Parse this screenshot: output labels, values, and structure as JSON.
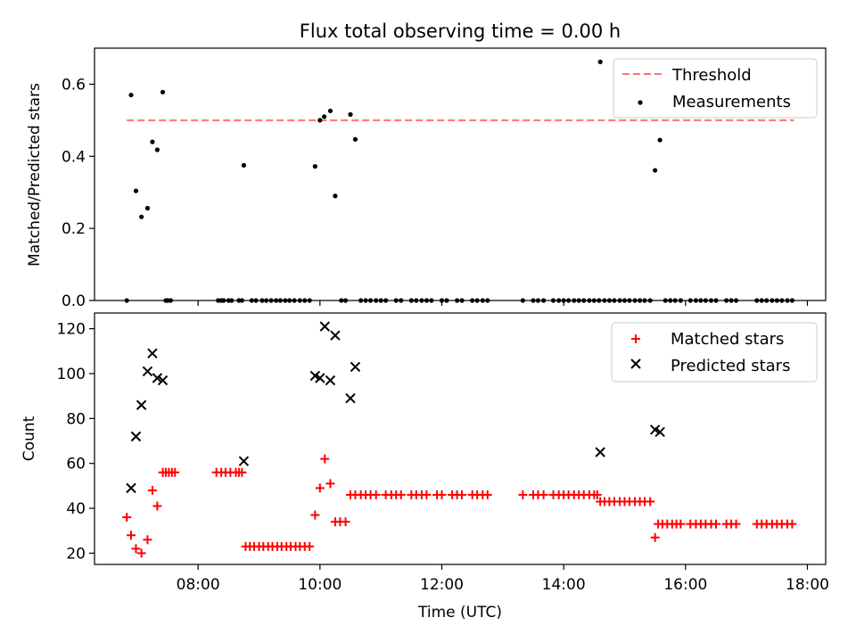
{
  "figure": {
    "title": "Flux total observing time = 0.00 h",
    "xlabel": "Time (UTC)"
  },
  "chart_data": [
    {
      "type": "scatter",
      "ylabel": "Matched/Predicted stars",
      "xlim": [
        6.3,
        18.3
      ],
      "ylim": [
        0,
        0.7
      ],
      "yticks": [
        0.0,
        0.2,
        0.4,
        0.6
      ],
      "ytick_labels": [
        "0.0",
        "0.2",
        "0.4",
        "0.6"
      ],
      "legend": {
        "position": "top-right"
      },
      "threshold": {
        "name": "Threshold",
        "y": 0.5,
        "x_range": [
          6.83,
          17.78
        ],
        "color": "#ff7373"
      },
      "series": [
        {
          "name": "Measurements",
          "color": "#000000",
          "points": [
            [
              6.83,
              0
            ],
            [
              6.9,
              0.57
            ],
            [
              6.98,
              0.304
            ],
            [
              7.07,
              0.232
            ],
            [
              7.17,
              0.256
            ],
            [
              7.25,
              0.44
            ],
            [
              7.33,
              0.418
            ],
            [
              7.42,
              0.578
            ],
            [
              7.47,
              0
            ],
            [
              7.5,
              0
            ],
            [
              7.55,
              0
            ],
            [
              8.33,
              0
            ],
            [
              8.38,
              0
            ],
            [
              8.42,
              0
            ],
            [
              8.5,
              0
            ],
            [
              8.55,
              0
            ],
            [
              8.67,
              0
            ],
            [
              8.72,
              0
            ],
            [
              8.75,
              0.375
            ],
            [
              8.88,
              0
            ],
            [
              8.95,
              0
            ],
            [
              9.05,
              0
            ],
            [
              9.12,
              0
            ],
            [
              9.2,
              0
            ],
            [
              9.28,
              0
            ],
            [
              9.35,
              0
            ],
            [
              9.43,
              0
            ],
            [
              9.5,
              0
            ],
            [
              9.58,
              0
            ],
            [
              9.67,
              0
            ],
            [
              9.75,
              0
            ],
            [
              9.83,
              0
            ],
            [
              9.92,
              0.372
            ],
            [
              10.0,
              0.5
            ],
            [
              10.07,
              0.51
            ],
            [
              10.17,
              0.526
            ],
            [
              10.25,
              0.29
            ],
            [
              10.35,
              0
            ],
            [
              10.42,
              0
            ],
            [
              10.5,
              0.516
            ],
            [
              10.58,
              0.447
            ],
            [
              10.67,
              0
            ],
            [
              10.75,
              0
            ],
            [
              10.83,
              0
            ],
            [
              10.92,
              0
            ],
            [
              11.0,
              0
            ],
            [
              11.08,
              0
            ],
            [
              11.25,
              0
            ],
            [
              11.33,
              0
            ],
            [
              11.5,
              0
            ],
            [
              11.58,
              0
            ],
            [
              11.67,
              0
            ],
            [
              11.75,
              0
            ],
            [
              11.83,
              0
            ],
            [
              12.0,
              0
            ],
            [
              12.08,
              0
            ],
            [
              12.25,
              0
            ],
            [
              12.33,
              0
            ],
            [
              12.5,
              0
            ],
            [
              12.58,
              0
            ],
            [
              12.67,
              0
            ],
            [
              12.75,
              0
            ],
            [
              13.33,
              0
            ],
            [
              13.5,
              0
            ],
            [
              13.58,
              0
            ],
            [
              13.67,
              0
            ],
            [
              13.83,
              0
            ],
            [
              13.92,
              0
            ],
            [
              14.0,
              0
            ],
            [
              14.08,
              0
            ],
            [
              14.17,
              0
            ],
            [
              14.25,
              0
            ],
            [
              14.33,
              0
            ],
            [
              14.42,
              0
            ],
            [
              14.5,
              0
            ],
            [
              14.58,
              0
            ],
            [
              14.6,
              0.662
            ],
            [
              14.67,
              0
            ],
            [
              14.75,
              0
            ],
            [
              14.83,
              0
            ],
            [
              14.92,
              0
            ],
            [
              15.0,
              0
            ],
            [
              15.08,
              0
            ],
            [
              15.17,
              0
            ],
            [
              15.25,
              0
            ],
            [
              15.33,
              0
            ],
            [
              15.42,
              0
            ],
            [
              15.5,
              0.361
            ],
            [
              15.58,
              0.445
            ],
            [
              15.67,
              0
            ],
            [
              15.75,
              0
            ],
            [
              15.83,
              0
            ],
            [
              15.92,
              0
            ],
            [
              16.08,
              0
            ],
            [
              16.17,
              0
            ],
            [
              16.25,
              0
            ],
            [
              16.33,
              0
            ],
            [
              16.42,
              0
            ],
            [
              16.5,
              0
            ],
            [
              16.67,
              0
            ],
            [
              16.75,
              0
            ],
            [
              16.83,
              0
            ],
            [
              17.17,
              0
            ],
            [
              17.25,
              0
            ],
            [
              17.33,
              0
            ],
            [
              17.42,
              0
            ],
            [
              17.5,
              0
            ],
            [
              17.58,
              0
            ],
            [
              17.67,
              0
            ],
            [
              17.75,
              0
            ]
          ]
        }
      ]
    },
    {
      "type": "scatter",
      "ylabel": "Count",
      "xlim": [
        6.3,
        18.3
      ],
      "ylim": [
        15,
        127
      ],
      "yticks": [
        20,
        40,
        60,
        80,
        100,
        120
      ],
      "ytick_labels": [
        "20",
        "40",
        "60",
        "80",
        "100",
        "120"
      ],
      "xticks": [
        8,
        10,
        12,
        14,
        16,
        18
      ],
      "xtick_labels": [
        "08:00",
        "10:00",
        "12:00",
        "14:00",
        "16:00",
        "18:00"
      ],
      "legend": {
        "position": "top-right"
      },
      "series": [
        {
          "name": "Matched stars",
          "marker": "plus",
          "color": "#ff0000",
          "points": [
            [
              6.83,
              36
            ],
            [
              6.9,
              28
            ],
            [
              6.98,
              22
            ],
            [
              7.07,
              20
            ],
            [
              7.17,
              26
            ],
            [
              7.25,
              48
            ],
            [
              7.33,
              41
            ],
            [
              7.42,
              56
            ],
            [
              7.47,
              56
            ],
            [
              7.52,
              56
            ],
            [
              7.57,
              56
            ],
            [
              7.62,
              56
            ],
            [
              8.3,
              56
            ],
            [
              8.38,
              56
            ],
            [
              8.45,
              56
            ],
            [
              8.53,
              56
            ],
            [
              8.62,
              56
            ],
            [
              8.67,
              56
            ],
            [
              8.72,
              56
            ],
            [
              8.78,
              23
            ],
            [
              8.85,
              23
            ],
            [
              8.92,
              23
            ],
            [
              9.0,
              23
            ],
            [
              9.07,
              23
            ],
            [
              9.15,
              23
            ],
            [
              9.22,
              23
            ],
            [
              9.3,
              23
            ],
            [
              9.37,
              23
            ],
            [
              9.45,
              23
            ],
            [
              9.52,
              23
            ],
            [
              9.6,
              23
            ],
            [
              9.67,
              23
            ],
            [
              9.75,
              23
            ],
            [
              9.83,
              23
            ],
            [
              9.92,
              37
            ],
            [
              10.0,
              49
            ],
            [
              10.08,
              62
            ],
            [
              10.17,
              51
            ],
            [
              10.25,
              34
            ],
            [
              10.33,
              34
            ],
            [
              10.42,
              34
            ],
            [
              10.5,
              46
            ],
            [
              10.58,
              46
            ],
            [
              10.67,
              46
            ],
            [
              10.75,
              46
            ],
            [
              10.83,
              46
            ],
            [
              10.92,
              46
            ],
            [
              11.08,
              46
            ],
            [
              11.17,
              46
            ],
            [
              11.25,
              46
            ],
            [
              11.33,
              46
            ],
            [
              11.5,
              46
            ],
            [
              11.58,
              46
            ],
            [
              11.67,
              46
            ],
            [
              11.75,
              46
            ],
            [
              11.92,
              46
            ],
            [
              12.0,
              46
            ],
            [
              12.17,
              46
            ],
            [
              12.25,
              46
            ],
            [
              12.33,
              46
            ],
            [
              12.5,
              46
            ],
            [
              12.58,
              46
            ],
            [
              12.67,
              46
            ],
            [
              12.75,
              46
            ],
            [
              13.33,
              46
            ],
            [
              13.5,
              46
            ],
            [
              13.58,
              46
            ],
            [
              13.67,
              46
            ],
            [
              13.83,
              46
            ],
            [
              13.92,
              46
            ],
            [
              14.0,
              46
            ],
            [
              14.08,
              46
            ],
            [
              14.17,
              46
            ],
            [
              14.25,
              46
            ],
            [
              14.33,
              46
            ],
            [
              14.42,
              46
            ],
            [
              14.5,
              46
            ],
            [
              14.55,
              46
            ],
            [
              14.6,
              43
            ],
            [
              14.67,
              43
            ],
            [
              14.75,
              43
            ],
            [
              14.83,
              43
            ],
            [
              14.92,
              43
            ],
            [
              15.0,
              43
            ],
            [
              15.08,
              43
            ],
            [
              15.17,
              43
            ],
            [
              15.25,
              43
            ],
            [
              15.33,
              43
            ],
            [
              15.42,
              43
            ],
            [
              15.5,
              27
            ],
            [
              15.55,
              33
            ],
            [
              15.62,
              33
            ],
            [
              15.7,
              33
            ],
            [
              15.78,
              33
            ],
            [
              15.85,
              33
            ],
            [
              15.92,
              33
            ],
            [
              16.08,
              33
            ],
            [
              16.17,
              33
            ],
            [
              16.25,
              33
            ],
            [
              16.33,
              33
            ],
            [
              16.42,
              33
            ],
            [
              16.5,
              33
            ],
            [
              16.67,
              33
            ],
            [
              16.75,
              33
            ],
            [
              16.83,
              33
            ],
            [
              17.17,
              33
            ],
            [
              17.25,
              33
            ],
            [
              17.33,
              33
            ],
            [
              17.42,
              33
            ],
            [
              17.5,
              33
            ],
            [
              17.58,
              33
            ],
            [
              17.67,
              33
            ],
            [
              17.75,
              33
            ]
          ]
        },
        {
          "name": "Predicted stars",
          "marker": "x",
          "color": "#000000",
          "points": [
            [
              6.9,
              49
            ],
            [
              6.98,
              72
            ],
            [
              7.07,
              86
            ],
            [
              7.17,
              101
            ],
            [
              7.25,
              109
            ],
            [
              7.33,
              98
            ],
            [
              7.42,
              97
            ],
            [
              8.75,
              61
            ],
            [
              9.92,
              99
            ],
            [
              10.0,
              98
            ],
            [
              10.08,
              121
            ],
            [
              10.17,
              97
            ],
            [
              10.25,
              117
            ],
            [
              10.5,
              89
            ],
            [
              10.58,
              103
            ],
            [
              14.6,
              65
            ],
            [
              15.5,
              75
            ],
            [
              15.58,
              74
            ]
          ]
        }
      ]
    }
  ]
}
